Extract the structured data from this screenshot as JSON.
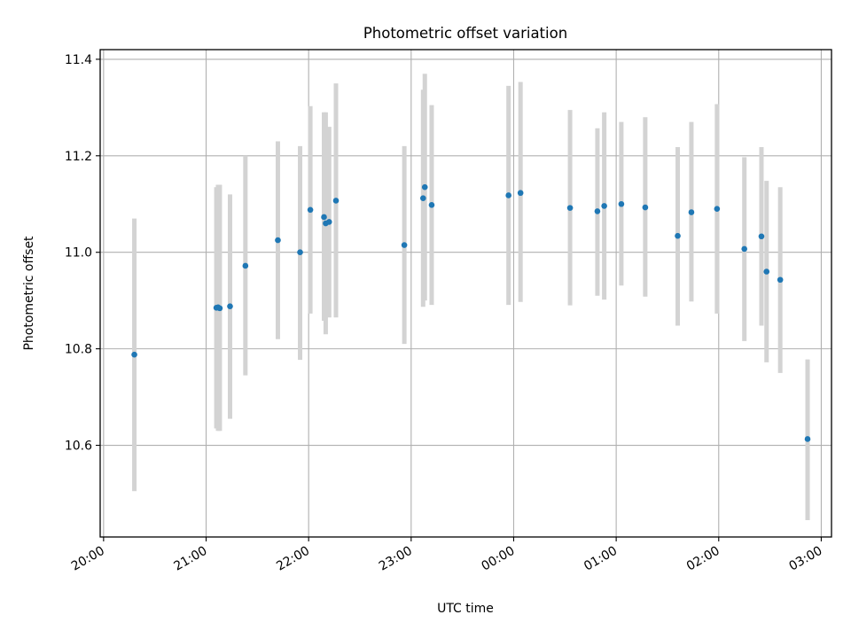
{
  "chart_data": {
    "type": "scatter",
    "title": "Photometric offset variation",
    "xlabel": "UTC time",
    "ylabel": "Photometric offset",
    "x_unit": "UTC time (HH:MM)",
    "xlim": [
      "19:58",
      "03:06"
    ],
    "ylim": [
      10.41,
      11.42
    ],
    "xticks": [
      "20:00",
      "21:00",
      "22:00",
      "23:00",
      "00:00",
      "01:00",
      "02:00",
      "03:00"
    ],
    "yticks": [
      10.6,
      10.8,
      11.0,
      11.2,
      11.4
    ],
    "ytick_labels": [
      "10.6",
      "10.8",
      "11.0",
      "11.2",
      "11.4"
    ],
    "grid": true,
    "legend": "none",
    "marker_color": "#1f77b4",
    "errorbar_color": "#d3d3d3",
    "points": [
      {
        "x": "20:18",
        "y": 10.788,
        "ylo": 10.505,
        "yhi": 11.07
      },
      {
        "x": "21:06",
        "y": 10.885,
        "ylo": 10.635,
        "yhi": 11.135
      },
      {
        "x": "21:07",
        "y": 10.886,
        "ylo": 10.63,
        "yhi": 11.14
      },
      {
        "x": "21:08",
        "y": 10.884,
        "ylo": 10.63,
        "yhi": 11.14
      },
      {
        "x": "21:14",
        "y": 10.888,
        "ylo": 10.655,
        "yhi": 11.12
      },
      {
        "x": "21:23",
        "y": 10.972,
        "ylo": 10.745,
        "yhi": 11.2
      },
      {
        "x": "21:42",
        "y": 11.025,
        "ylo": 10.82,
        "yhi": 11.23
      },
      {
        "x": "21:55",
        "y": 11.0,
        "ylo": 10.777,
        "yhi": 11.22
      },
      {
        "x": "22:01",
        "y": 11.088,
        "ylo": 10.873,
        "yhi": 11.303
      },
      {
        "x": "22:09",
        "y": 11.073,
        "ylo": 10.858,
        "yhi": 11.29
      },
      {
        "x": "22:10",
        "y": 11.06,
        "ylo": 10.83,
        "yhi": 11.29
      },
      {
        "x": "22:12",
        "y": 11.063,
        "ylo": 10.865,
        "yhi": 11.26
      },
      {
        "x": "22:16",
        "y": 11.107,
        "ylo": 10.865,
        "yhi": 11.35
      },
      {
        "x": "22:56",
        "y": 11.015,
        "ylo": 10.81,
        "yhi": 11.22
      },
      {
        "x": "23:07",
        "y": 11.112,
        "ylo": 10.887,
        "yhi": 11.337
      },
      {
        "x": "23:08",
        "y": 11.135,
        "ylo": 10.9,
        "yhi": 11.37
      },
      {
        "x": "23:12",
        "y": 11.098,
        "ylo": 10.891,
        "yhi": 11.305
      },
      {
        "x": "23:57",
        "y": 11.118,
        "ylo": 10.891,
        "yhi": 11.345
      },
      {
        "x": "00:04",
        "y": 11.123,
        "ylo": 10.897,
        "yhi": 11.353
      },
      {
        "x": "00:33",
        "y": 11.092,
        "ylo": 10.89,
        "yhi": 11.295
      },
      {
        "x": "00:49",
        "y": 11.085,
        "ylo": 10.91,
        "yhi": 11.257
      },
      {
        "x": "00:53",
        "y": 11.096,
        "ylo": 10.902,
        "yhi": 11.29
      },
      {
        "x": "01:03",
        "y": 11.1,
        "ylo": 10.931,
        "yhi": 11.27
      },
      {
        "x": "01:17",
        "y": 11.093,
        "ylo": 10.908,
        "yhi": 11.28
      },
      {
        "x": "01:36",
        "y": 11.034,
        "ylo": 10.848,
        "yhi": 11.218
      },
      {
        "x": "01:44",
        "y": 11.083,
        "ylo": 10.898,
        "yhi": 11.27
      },
      {
        "x": "01:59",
        "y": 11.09,
        "ylo": 10.873,
        "yhi": 11.307
      },
      {
        "x": "02:15",
        "y": 11.007,
        "ylo": 10.816,
        "yhi": 11.197
      },
      {
        "x": "02:25",
        "y": 11.033,
        "ylo": 10.848,
        "yhi": 11.218
      },
      {
        "x": "02:28",
        "y": 10.96,
        "ylo": 10.772,
        "yhi": 11.148
      },
      {
        "x": "02:36",
        "y": 10.943,
        "ylo": 10.75,
        "yhi": 11.135
      },
      {
        "x": "02:52",
        "y": 10.613,
        "ylo": 10.445,
        "yhi": 10.778
      }
    ]
  }
}
